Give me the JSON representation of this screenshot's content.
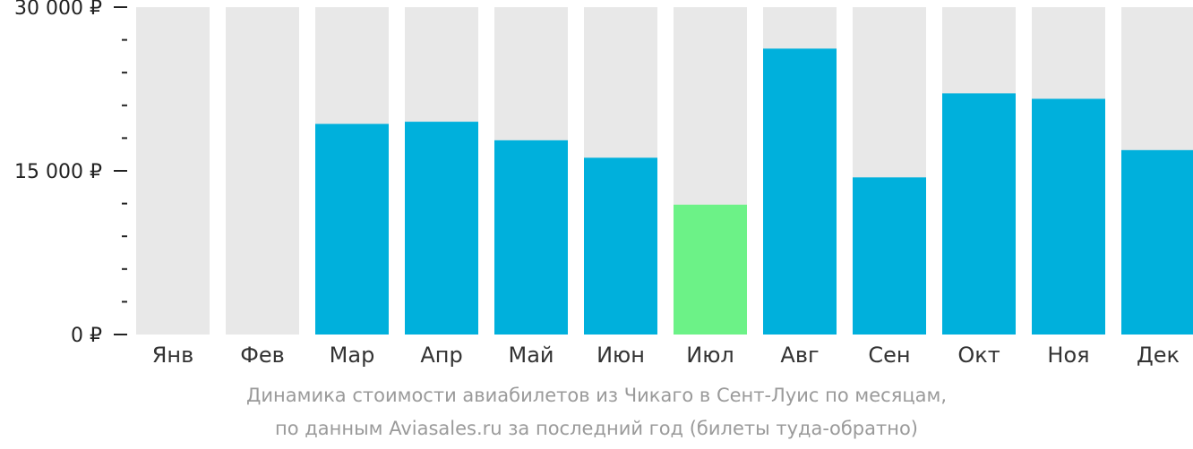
{
  "chart_data": {
    "type": "bar",
    "categories": [
      "Янв",
      "Фев",
      "Мар",
      "Апр",
      "Май",
      "Июн",
      "Июл",
      "Авг",
      "Сен",
      "Окт",
      "Ноя",
      "Дек"
    ],
    "values": [
      null,
      null,
      19300,
      19500,
      17800,
      16200,
      11900,
      26200,
      14400,
      22100,
      21600,
      16900
    ],
    "highlight_category": "Июл",
    "ylim": [
      0,
      30000
    ],
    "y_ticks": [
      {
        "value": 0,
        "label": "0 ₽"
      },
      {
        "value": 15000,
        "label": "15 000 ₽"
      },
      {
        "value": 30000,
        "label": "30 000 ₽"
      }
    ],
    "minor_tick_step": 3000,
    "grid": false,
    "title": "Динамика стоимости авиабилетов из Чикаго в Сент-Луис по месяцам,",
    "subtitle": "по данным Aviasales.ru за последний год (билеты туда-обратно)",
    "colors": {
      "bar": "#00b0dc",
      "highlight": "#6cf287",
      "background_column": "#e8e8e8",
      "axis": "#222222"
    }
  }
}
